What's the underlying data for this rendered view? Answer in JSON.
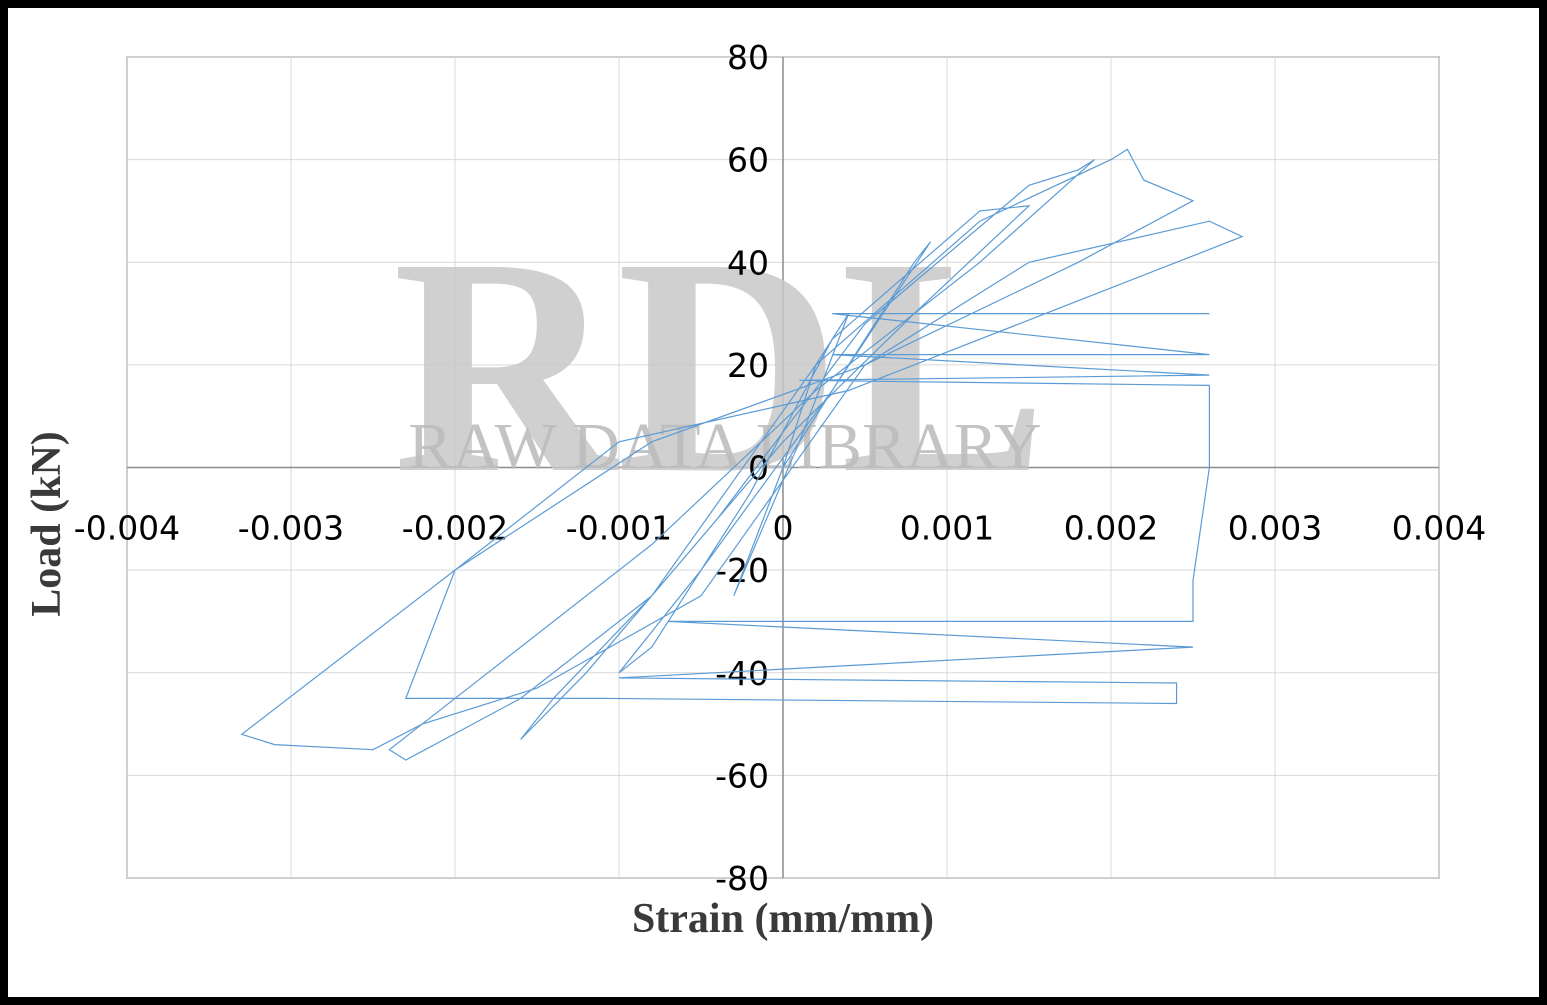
{
  "chart_data": {
    "type": "line",
    "x_label": "Strain (mm/mm)",
    "y_label": "Load (kN)",
    "watermark": {
      "letters": "RDL",
      "text": "RAW DATA LIBRARY"
    },
    "xlim": [
      -0.004,
      0.004
    ],
    "xticks": [
      -0.004,
      -0.003,
      -0.002,
      -0.001,
      0,
      0.001,
      0.002,
      0.003,
      0.004
    ],
    "ylim": [
      -80,
      80
    ],
    "yticks": [
      -80,
      -60,
      -40,
      -20,
      0,
      20,
      40,
      60,
      80
    ],
    "grid": true,
    "series": [
      {
        "color": "#5b9bd5",
        "x": [
          0,
          0.0002,
          0.0004,
          0.0001,
          -0.0001,
          -0.0003,
          0,
          0.0008,
          0.0009,
          0.0003,
          -0.0005,
          -0.001,
          -0.0008,
          -0.0002,
          0.0003,
          0.0012,
          0.0015,
          0.0008,
          0,
          -0.0008,
          -0.0014,
          -0.0016,
          -0.0012,
          -0.0004,
          0.0005,
          0.0015,
          0.0018,
          0.0019,
          0.0012,
          0.0002,
          -0.0008,
          -0.0018,
          -0.0024,
          -0.0023,
          -0.0016,
          -0.0008,
          0.0002,
          0.0012,
          0.002,
          0.0021,
          0.0022,
          0.0025,
          0.0018,
          0.0005,
          -0.0008,
          -0.002,
          -0.0033,
          -0.0031,
          -0.0025,
          -0.0022,
          -0.0015,
          -0.0005,
          0.0005,
          0.0015,
          0.0026,
          0.0028,
          0.0016,
          0.0004,
          -0.001,
          -0.002,
          -0.0023,
          -0.0011,
          0.0024,
          0.0024,
          -0.001,
          0.0025,
          -0.0007,
          0.0025,
          0.0025,
          0.0026,
          0.0026,
          0.0001,
          0.0026,
          0.0003,
          0.0026,
          0.0003,
          0.0026
        ],
        "values": [
          0,
          20,
          30,
          5,
          -10,
          -25,
          0,
          40,
          44,
          15,
          -20,
          -40,
          -35,
          -5,
          25,
          50,
          51,
          30,
          5,
          -25,
          -45,
          -53,
          -40,
          -10,
          28,
          55,
          58,
          60,
          40,
          15,
          -15,
          -40,
          -55,
          -57,
          -45,
          -25,
          20,
          48,
          60,
          62,
          56,
          52,
          40,
          20,
          5,
          -20,
          -52,
          -54,
          -55,
          -50,
          -43,
          -25,
          20,
          40,
          48,
          45,
          30,
          15,
          5,
          -20,
          -45,
          -45,
          -46,
          -42,
          -41,
          -35,
          -30,
          -30,
          -22,
          0,
          16,
          17,
          18,
          22,
          22,
          30,
          30
        ]
      }
    ]
  }
}
